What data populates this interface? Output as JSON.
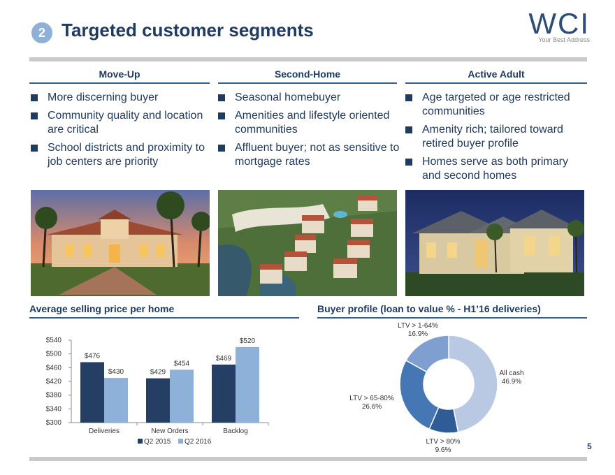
{
  "header": {
    "section_number": "2",
    "title": "Targeted customer segments",
    "logo_text": "WCI",
    "logo_tagline": "Your Best Address"
  },
  "columns": [
    {
      "heading": "Move-Up",
      "bullets": [
        "More discerning buyer",
        "Community quality and location are critical",
        "School districts and proximity to job centers are priority"
      ]
    },
    {
      "heading": "Second-Home",
      "bullets": [
        "Seasonal homebuyer",
        "Amenities and lifestyle oriented communities",
        "Affluent buyer; not as sensitive to mortgage rates"
      ]
    },
    {
      "heading": "Active Adult",
      "bullets": [
        "Age targeted or age restricted communities",
        "Amenity rich; tailored toward retired buyer profile",
        "Homes serve as both primary and second homes"
      ]
    }
  ],
  "charts": {
    "asp_title": "Average selling price per home",
    "buyer_title": "Buyer profile (loan to value % - H1’16 deliveries)"
  },
  "chart_data": [
    {
      "type": "bar",
      "title": "Average selling price per home",
      "categories": [
        "Deliveries",
        "New Orders",
        "Backlog"
      ],
      "series": [
        {
          "name": "Q2 2015",
          "values": [
            476,
            429,
            469
          ],
          "labels": [
            "$476",
            "$429",
            "$469"
          ],
          "color": "#243f63"
        },
        {
          "name": "Q2 2016",
          "values": [
            430,
            454,
            520
          ],
          "labels": [
            "$430",
            "$454",
            "$520"
          ],
          "color": "#8eb1d9"
        }
      ],
      "ylim": [
        300,
        540
      ],
      "yticks": [
        300,
        340,
        380,
        420,
        460,
        500,
        540
      ],
      "ytick_labels": [
        "$300",
        "$340",
        "$380",
        "$420",
        "$460",
        "$500",
        "$540"
      ],
      "legend": "bottom"
    },
    {
      "type": "pie",
      "title": "Buyer profile (loan to value % - H1’16 deliveries)",
      "slices": [
        {
          "label": "All cash",
          "value": 46.9,
          "value_label": "46.9%",
          "color": "#b9c8e3"
        },
        {
          "label": "LTV > 80%",
          "value": 9.6,
          "value_label": "9.6%",
          "color": "#2f5b96"
        },
        {
          "label": "LTV > 65-80%",
          "value": 26.6,
          "value_label": "26.6%",
          "color": "#4677b5"
        },
        {
          "label": "LTV > 1-64%",
          "value": 16.9,
          "value_label": "16.9%",
          "color": "#7f9fd0"
        }
      ],
      "donut": true
    }
  ],
  "footer": {
    "page_number": "5"
  },
  "colors": {
    "title": "#1f3b60",
    "accent": "#2f5f9a",
    "badge": "#8eb1d9"
  }
}
